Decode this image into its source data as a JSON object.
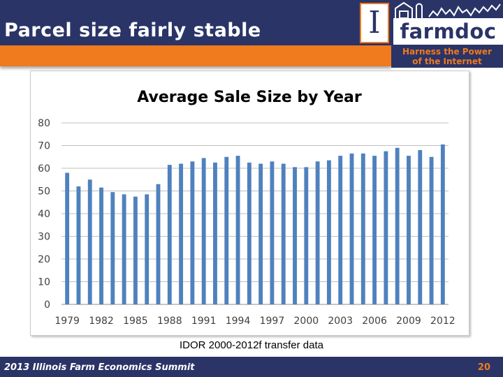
{
  "header": {
    "title": "Parcel size fairly stable",
    "logo_letter": "I",
    "brand": "farmdoc",
    "tagline_line1": "Harness the Power",
    "tagline_line2": "of the Internet"
  },
  "colors": {
    "navy": "#2b3467",
    "orange": "#f07a1e",
    "bar": "#4f81bd",
    "grid": "#bfbfbf"
  },
  "chart_data": {
    "type": "bar",
    "title": "Average Sale Size by Year",
    "categories": [
      "1979",
      "1980",
      "1981",
      "1982",
      "1983",
      "1984",
      "1985",
      "1986",
      "1987",
      "1988",
      "1989",
      "1990",
      "1991",
      "1992",
      "1993",
      "1994",
      "1995",
      "1996",
      "1997",
      "1998",
      "1999",
      "2000",
      "2001",
      "2002",
      "2003",
      "2004",
      "2005",
      "2006",
      "2007",
      "2008",
      "2009",
      "2010",
      "2011",
      "2012"
    ],
    "tick_labels": [
      "1979",
      "1982",
      "1985",
      "1988",
      "1991",
      "1994",
      "1997",
      "2000",
      "2003",
      "2006",
      "2009",
      "2012"
    ],
    "values": [
      58,
      52,
      55,
      51.5,
      49.5,
      48.5,
      47.5,
      48.5,
      53,
      61.5,
      62,
      63,
      64.5,
      62.5,
      65,
      65.5,
      62.5,
      62,
      63,
      62,
      60.5,
      60.5,
      63,
      63.5,
      65.5,
      66.5,
      66.5,
      65.5,
      67.5,
      69,
      65.5,
      68,
      65,
      70.5
    ],
    "ylim": [
      0,
      80
    ],
    "yticks": [
      "0",
      "10",
      "20",
      "30",
      "40",
      "50",
      "60",
      "70",
      "80"
    ],
    "grid": true,
    "legend": "none"
  },
  "source_note": "IDOR 2000-2012f transfer data",
  "footer": {
    "text": "2013 Illinois Farm Economics Summit",
    "page": "20"
  }
}
